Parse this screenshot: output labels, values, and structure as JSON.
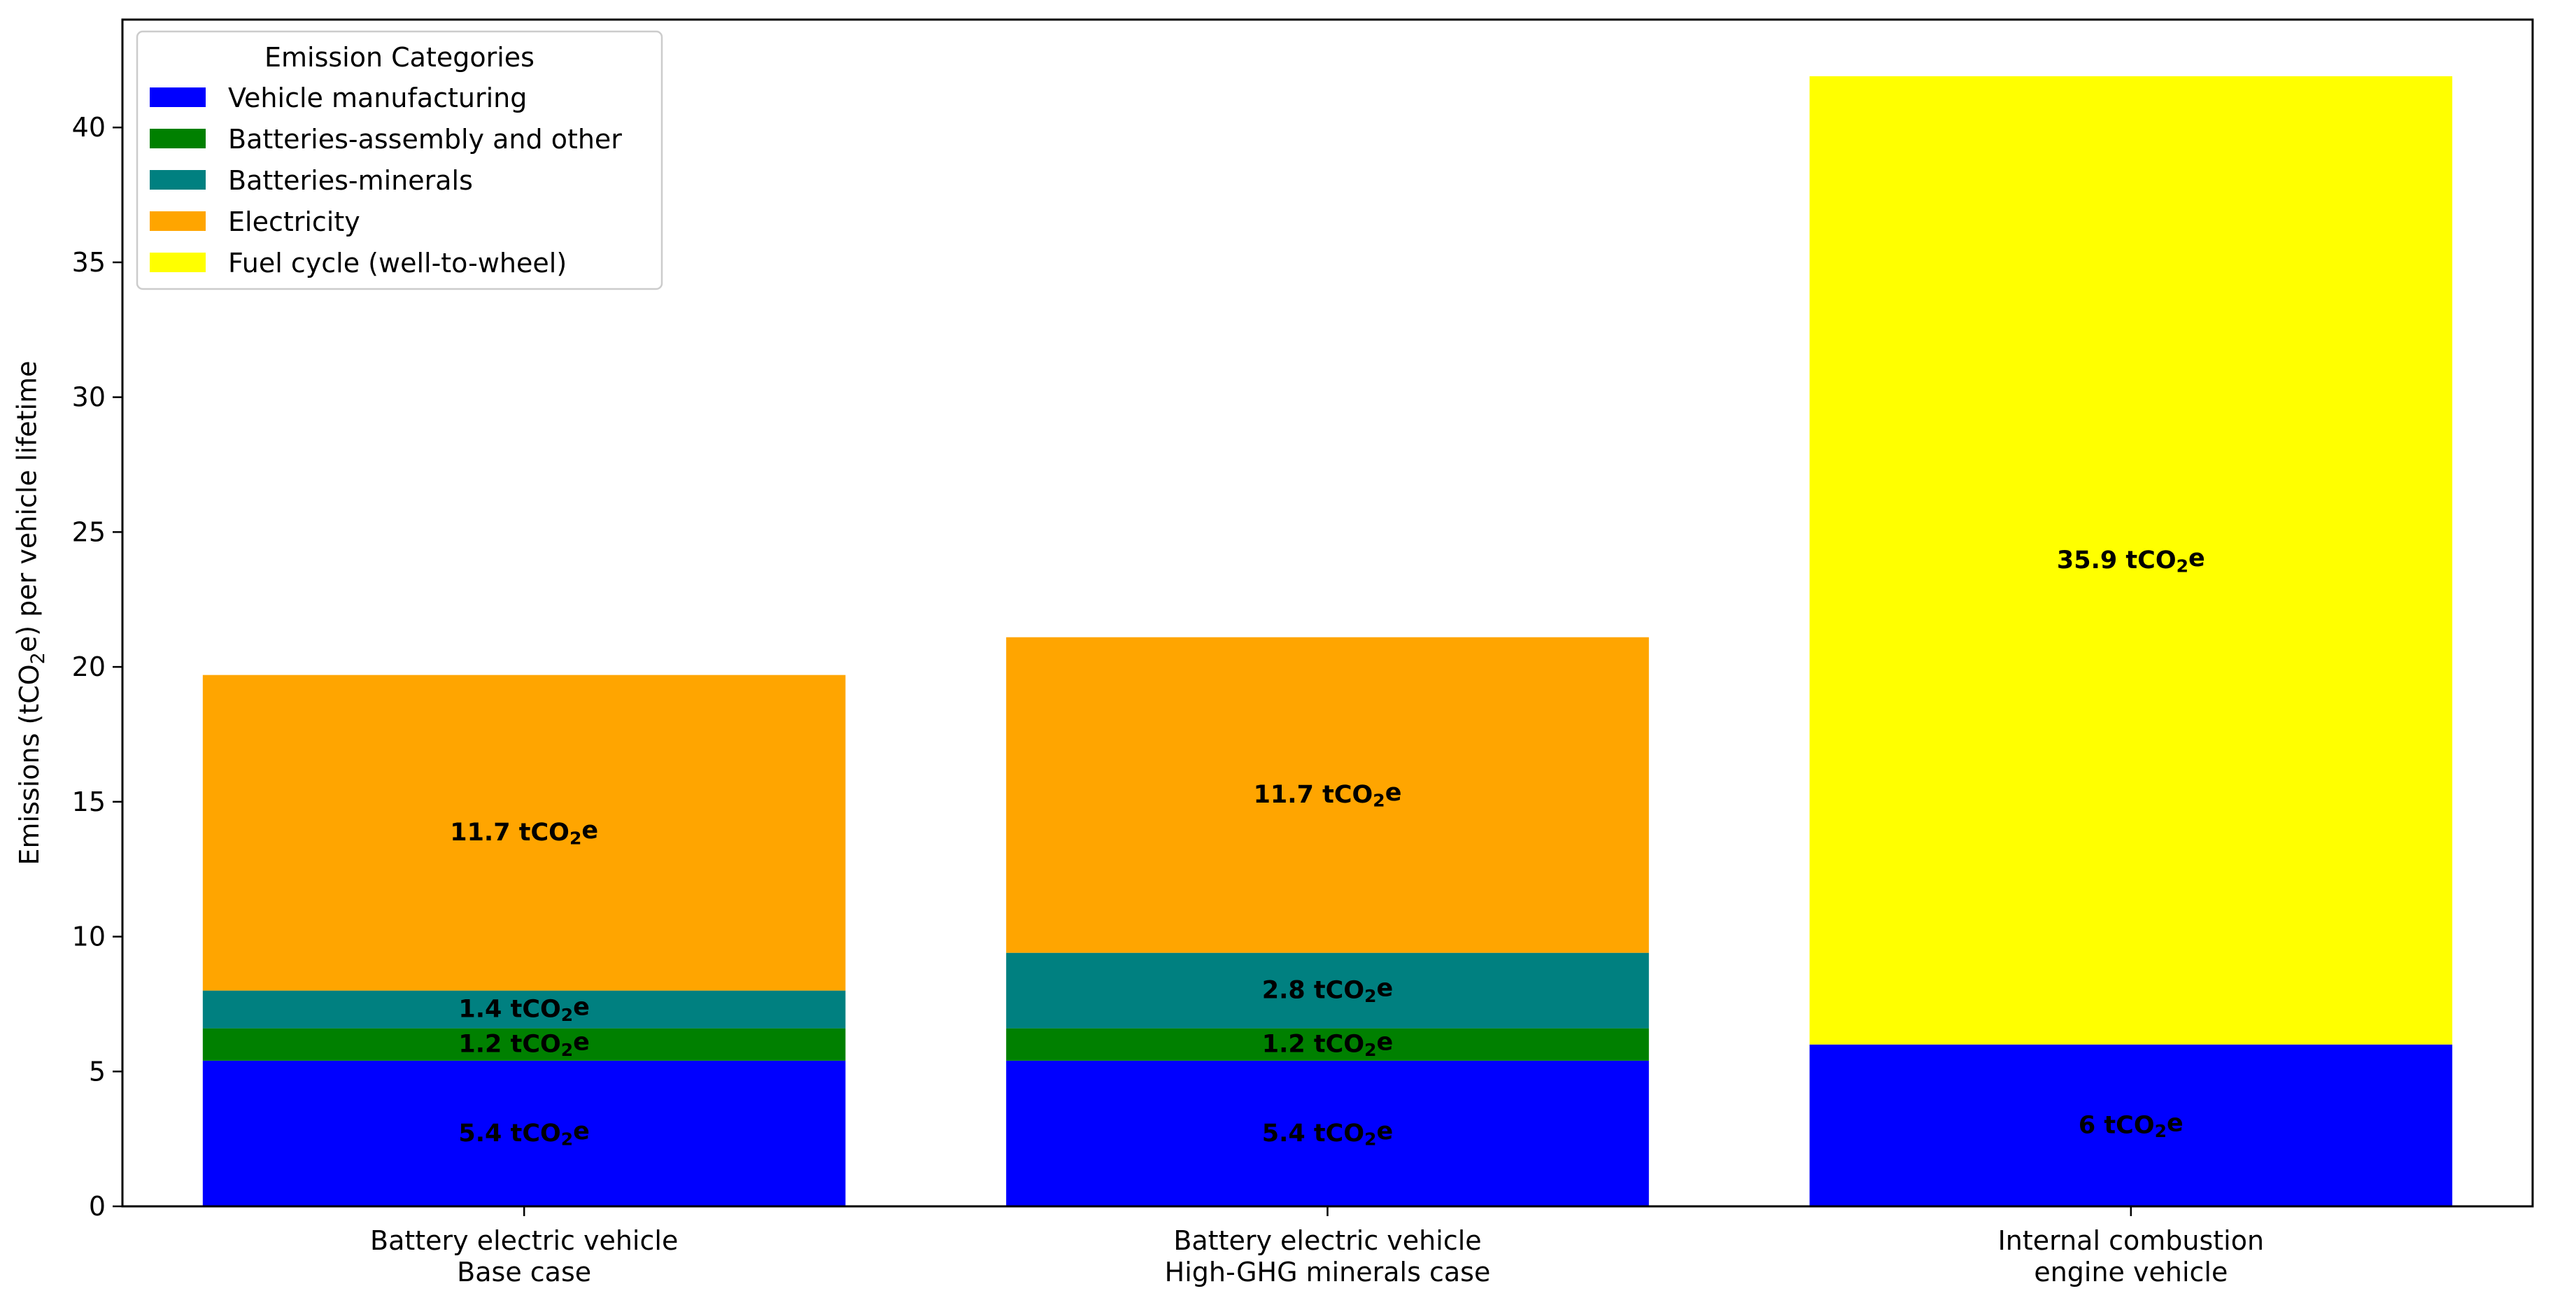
{
  "chart_data": {
    "type": "bar",
    "stacked": true,
    "categories": [
      [
        "Battery electric vehicle",
        "Base case"
      ],
      [
        "Battery electric vehicle",
        "High-GHG minerals case"
      ],
      [
        "Internal combustion",
        "engine vehicle"
      ]
    ],
    "ylabel": {
      "pre": "Emissions (tCO",
      "sub": "2",
      "post": "e) per vehicle lifetime"
    },
    "ylim": [
      0,
      44
    ],
    "yticks": [
      0,
      5,
      10,
      15,
      20,
      25,
      30,
      35,
      40
    ],
    "grid": false,
    "legend": {
      "title": "Emission Categories",
      "placement": "top-left"
    },
    "series": [
      {
        "name": "Vehicle manufacturing",
        "color": "#0000ff",
        "values": [
          5.4,
          5.4,
          6.0
        ],
        "labels": [
          {
            "pre": "5.4 tCO",
            "sub": "2",
            "post": "e"
          },
          {
            "pre": "5.4 tCO",
            "sub": "2",
            "post": "e"
          },
          {
            "pre": "6 tCO",
            "sub": "2",
            "post": "e"
          }
        ]
      },
      {
        "name": "Batteries-assembly and other",
        "color": "#008000",
        "values": [
          1.2,
          1.2,
          0
        ],
        "labels": [
          {
            "pre": "1.2 tCO",
            "sub": "2",
            "post": "e"
          },
          {
            "pre": "1.2 tCO",
            "sub": "2",
            "post": "e"
          },
          null
        ]
      },
      {
        "name": "Batteries-minerals",
        "color": "#008080",
        "values": [
          1.4,
          2.8,
          0
        ],
        "labels": [
          {
            "pre": "1.4 tCO",
            "sub": "2",
            "post": "e"
          },
          {
            "pre": "2.8 tCO",
            "sub": "2",
            "post": "e"
          },
          null
        ]
      },
      {
        "name": "Electricity",
        "color": "#ffa500",
        "values": [
          11.7,
          11.7,
          0
        ],
        "labels": [
          {
            "pre": "11.7 tCO",
            "sub": "2",
            "post": "e"
          },
          {
            "pre": "11.7 tCO",
            "sub": "2",
            "post": "e"
          },
          null
        ]
      },
      {
        "name": "Fuel cycle (well-to-wheel)",
        "color": "#ffff00",
        "values": [
          0,
          0,
          35.9
        ],
        "labels": [
          null,
          null,
          {
            "pre": "35.9 tCO",
            "sub": "2",
            "post": "e"
          }
        ]
      }
    ]
  }
}
